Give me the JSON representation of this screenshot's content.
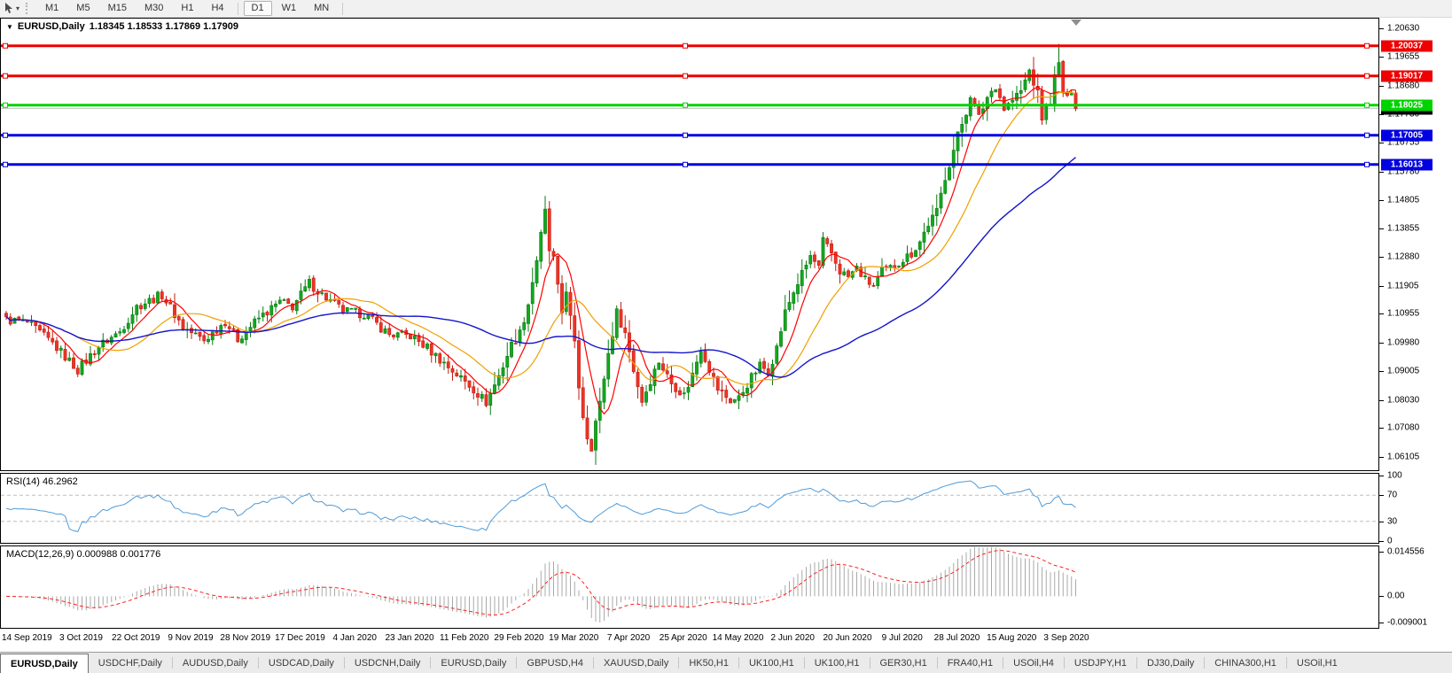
{
  "toolbar": {
    "cursor_icon": "cursor-arrow-icon",
    "dropdown_caret": "▾",
    "timeframes": [
      {
        "label": "M1",
        "active": false
      },
      {
        "label": "M5",
        "active": false
      },
      {
        "label": "M15",
        "active": false
      },
      {
        "label": "M30",
        "active": false
      },
      {
        "label": "H1",
        "active": false
      },
      {
        "label": "H4",
        "active": false
      },
      {
        "label": "D1",
        "active": true
      },
      {
        "label": "W1",
        "active": false
      },
      {
        "label": "MN",
        "active": false
      }
    ]
  },
  "chart": {
    "title_symbol": "EURUSD,Daily",
    "title_values": "1.18345 1.18533 1.17869 1.17909",
    "open": "1.18345",
    "high": "1.18533",
    "low": "1.17869",
    "close": "1.17909"
  },
  "chart_data": {
    "type": "candlestick",
    "title": "EURUSD Daily",
    "n_candles": 255,
    "ylim": [
      1.0565,
      1.2096
    ],
    "y_ticks": [
      "1.20630",
      "1.19655",
      "1.18680",
      "1.17730",
      "1.16755",
      "1.15780",
      "1.14805",
      "1.13855",
      "1.12880",
      "1.11905",
      "1.10955",
      "1.09980",
      "1.09005",
      "1.08030",
      "1.07080",
      "1.06105"
    ],
    "x_dates": [
      "14 Sep 2019",
      "3 Oct 2019",
      "22 Oct 2019",
      "9 Nov 2019",
      "28 Nov 2019",
      "17 Dec 2019",
      "4 Jan 2020",
      "23 Jan 2020",
      "11 Feb 2020",
      "29 Feb 2020",
      "19 Mar 2020",
      "7 Apr 2020",
      "25 Apr 2020",
      "14 May 2020",
      "2 Jun 2020",
      "20 Jun 2020",
      "9 Jul 2020",
      "28 Jul 2020",
      "15 Aug 2020",
      "3 Sep 2020"
    ],
    "close_keypoints": [
      [
        0,
        1.1075
      ],
      [
        5,
        1.1065
      ],
      [
        11,
        1.0995
      ],
      [
        17,
        1.0905
      ],
      [
        22,
        1.0985
      ],
      [
        27,
        1.1035
      ],
      [
        31,
        1.112
      ],
      [
        37,
        1.116
      ],
      [
        42,
        1.105
      ],
      [
        47,
        1.1005
      ],
      [
        52,
        1.107
      ],
      [
        55,
        1.101
      ],
      [
        60,
        1.108
      ],
      [
        65,
        1.1135
      ],
      [
        68,
        1.112
      ],
      [
        72,
        1.12
      ],
      [
        75,
        1.116
      ],
      [
        80,
        1.1105
      ],
      [
        85,
        1.1095
      ],
      [
        91,
        1.1025
      ],
      [
        96,
        1.102
      ],
      [
        100,
        1.098
      ],
      [
        105,
        1.0915
      ],
      [
        111,
        1.084
      ],
      [
        114,
        1.0795
      ],
      [
        117,
        1.0885
      ],
      [
        120,
        1.099
      ],
      [
        122,
        1.103
      ],
      [
        124,
        1.113
      ],
      [
        126,
        1.128
      ],
      [
        128,
        1.144
      ],
      [
        129,
        1.131
      ],
      [
        130,
        1.128
      ],
      [
        131,
        1.118
      ],
      [
        132,
        1.11
      ],
      [
        133,
        1.118
      ],
      [
        134,
        1.108
      ],
      [
        135,
        1.099
      ],
      [
        136,
        1.085
      ],
      [
        137,
        1.075
      ],
      [
        138,
        1.068
      ],
      [
        139,
        1.0645
      ],
      [
        140,
        1.073
      ],
      [
        141,
        1.079
      ],
      [
        142,
        1.088
      ],
      [
        143,
        1.096
      ],
      [
        144,
        1.103
      ],
      [
        145,
        1.11
      ],
      [
        147,
        1.103
      ],
      [
        149,
        1.0905
      ],
      [
        151,
        1.08
      ],
      [
        153,
        1.087
      ],
      [
        155,
        1.0935
      ],
      [
        158,
        1.086
      ],
      [
        161,
        1.082
      ],
      [
        163,
        1.089
      ],
      [
        165,
        1.098
      ],
      [
        167,
        1.091
      ],
      [
        169,
        1.084
      ],
      [
        172,
        1.08
      ],
      [
        174,
        1.081
      ],
      [
        177,
        1.088
      ],
      [
        179,
        1.092
      ],
      [
        181,
        1.09
      ],
      [
        183,
        1.098
      ],
      [
        185,
        1.11
      ],
      [
        187,
        1.117
      ],
      [
        189,
        1.123
      ],
      [
        191,
        1.129
      ],
      [
        193,
        1.125
      ],
      [
        194,
        1.134
      ],
      [
        196,
        1.13
      ],
      [
        198,
        1.124
      ],
      [
        200,
        1.122
      ],
      [
        202,
        1.125
      ],
      [
        204,
        1.121
      ],
      [
        206,
        1.119
      ],
      [
        208,
        1.124
      ],
      [
        210,
        1.125
      ],
      [
        213,
        1.128
      ],
      [
        215,
        1.13
      ],
      [
        217,
        1.134
      ],
      [
        219,
        1.14
      ],
      [
        221,
        1.144
      ],
      [
        223,
        1.156
      ],
      [
        225,
        1.165
      ],
      [
        226,
        1.17
      ],
      [
        228,
        1.178
      ],
      [
        229,
        1.184
      ],
      [
        231,
        1.176
      ],
      [
        233,
        1.183
      ],
      [
        235,
        1.187
      ],
      [
        237,
        1.179
      ],
      [
        239,
        1.182
      ],
      [
        241,
        1.185
      ],
      [
        243,
        1.192
      ],
      [
        245,
        1.184
      ],
      [
        246,
        1.176
      ],
      [
        248,
        1.182
      ],
      [
        249,
        1.1895
      ],
      [
        250,
        1.194
      ],
      [
        251,
        1.185
      ],
      [
        252,
        1.182
      ],
      [
        253,
        1.1855
      ],
      [
        254,
        1.1791
      ]
    ],
    "overrides": {
      "114": {
        "low": 1.0778
      },
      "128": {
        "high": 1.1495
      },
      "139": {
        "low": 1.0636
      },
      "250": {
        "high": 1.201
      },
      "254": {
        "close": 1.17909
      }
    },
    "moving_averages": [
      {
        "name": "MA fast",
        "period": 7,
        "color": "#ff0000"
      },
      {
        "name": "MA medium",
        "period": 18,
        "color": "#efa000"
      },
      {
        "name": "MA slow",
        "period": 50,
        "color": "#1414cc"
      }
    ],
    "horizontal_lines": [
      {
        "label": "1.20037",
        "price": 1.20037,
        "color": "#ee0000"
      },
      {
        "label": "1.19017",
        "price": 1.19017,
        "color": "#ee0000"
      },
      {
        "label": "1.18025",
        "price": 1.18025,
        "color": "#00d300"
      },
      {
        "label": "1.17005",
        "price": 1.17005,
        "color": "#0000e0"
      },
      {
        "label": "1.16013",
        "price": 1.16013,
        "color": "#0000e0"
      }
    ],
    "current_price": {
      "label": "1.17909",
      "price": 1.17909,
      "badge_color": "#000000",
      "line_color": "#c4c4c4"
    },
    "candle_up_fill": "#12a81e",
    "candle_up_stroke": "#0b7a14",
    "candle_down_fill": "#ef3325",
    "candle_down_stroke": "#c01d12"
  },
  "rsi": {
    "label": "RSI(14) 46.2962",
    "period": 14,
    "value": "46.2962",
    "axis_labels": [
      {
        "label": "100",
        "v": 100
      },
      {
        "label": "70",
        "v": 70
      },
      {
        "label": "30",
        "v": 30
      },
      {
        "label": "0",
        "v": 0
      }
    ],
    "levels": [
      70,
      30
    ],
    "line_color": "#4f9bd8",
    "level_color": "#bdbdbd"
  },
  "macd": {
    "label": "MACD(12,26,9) 0.000988 0.001776",
    "fast": 12,
    "slow": 26,
    "signal": 9,
    "macd_value": "0.000988",
    "signal_value": "0.001776",
    "axis_labels": [
      {
        "label": "0.014556",
        "v": 0.014556,
        "clamp": "top"
      },
      {
        "label": "0.00",
        "v": 0,
        "clamp": "none"
      },
      {
        "label": "-0.009001",
        "v": -0.009001,
        "clamp": "bottom"
      }
    ],
    "ymax": 0.014556,
    "ymin": -0.009001,
    "hist_color": "#a8a8a8",
    "signal_color": "#ff2020"
  },
  "shift_marker_color": "#8f8f8f",
  "tabs": [
    {
      "label": "EURUSD,Daily",
      "active": true
    },
    {
      "label": "USDCHF,Daily",
      "active": false
    },
    {
      "label": "AUDUSD,Daily",
      "active": false
    },
    {
      "label": "USDCAD,Daily",
      "active": false
    },
    {
      "label": "USDCNH,Daily",
      "active": false
    },
    {
      "label": "EURUSD,Daily",
      "active": false
    },
    {
      "label": "GBPUSD,H4",
      "active": false
    },
    {
      "label": "XAUUSD,Daily",
      "active": false
    },
    {
      "label": "HK50,H1",
      "active": false
    },
    {
      "label": "UK100,H1",
      "active": false
    },
    {
      "label": "UK100,H1",
      "active": false
    },
    {
      "label": "GER30,H1",
      "active": false
    },
    {
      "label": "FRA40,H1",
      "active": false
    },
    {
      "label": "USOil,H4",
      "active": false
    },
    {
      "label": "USDJPY,H1",
      "active": false
    },
    {
      "label": "DJ30,Daily",
      "active": false
    },
    {
      "label": "CHINA300,H1",
      "active": false
    },
    {
      "label": "USOil,H1",
      "active": false
    }
  ]
}
